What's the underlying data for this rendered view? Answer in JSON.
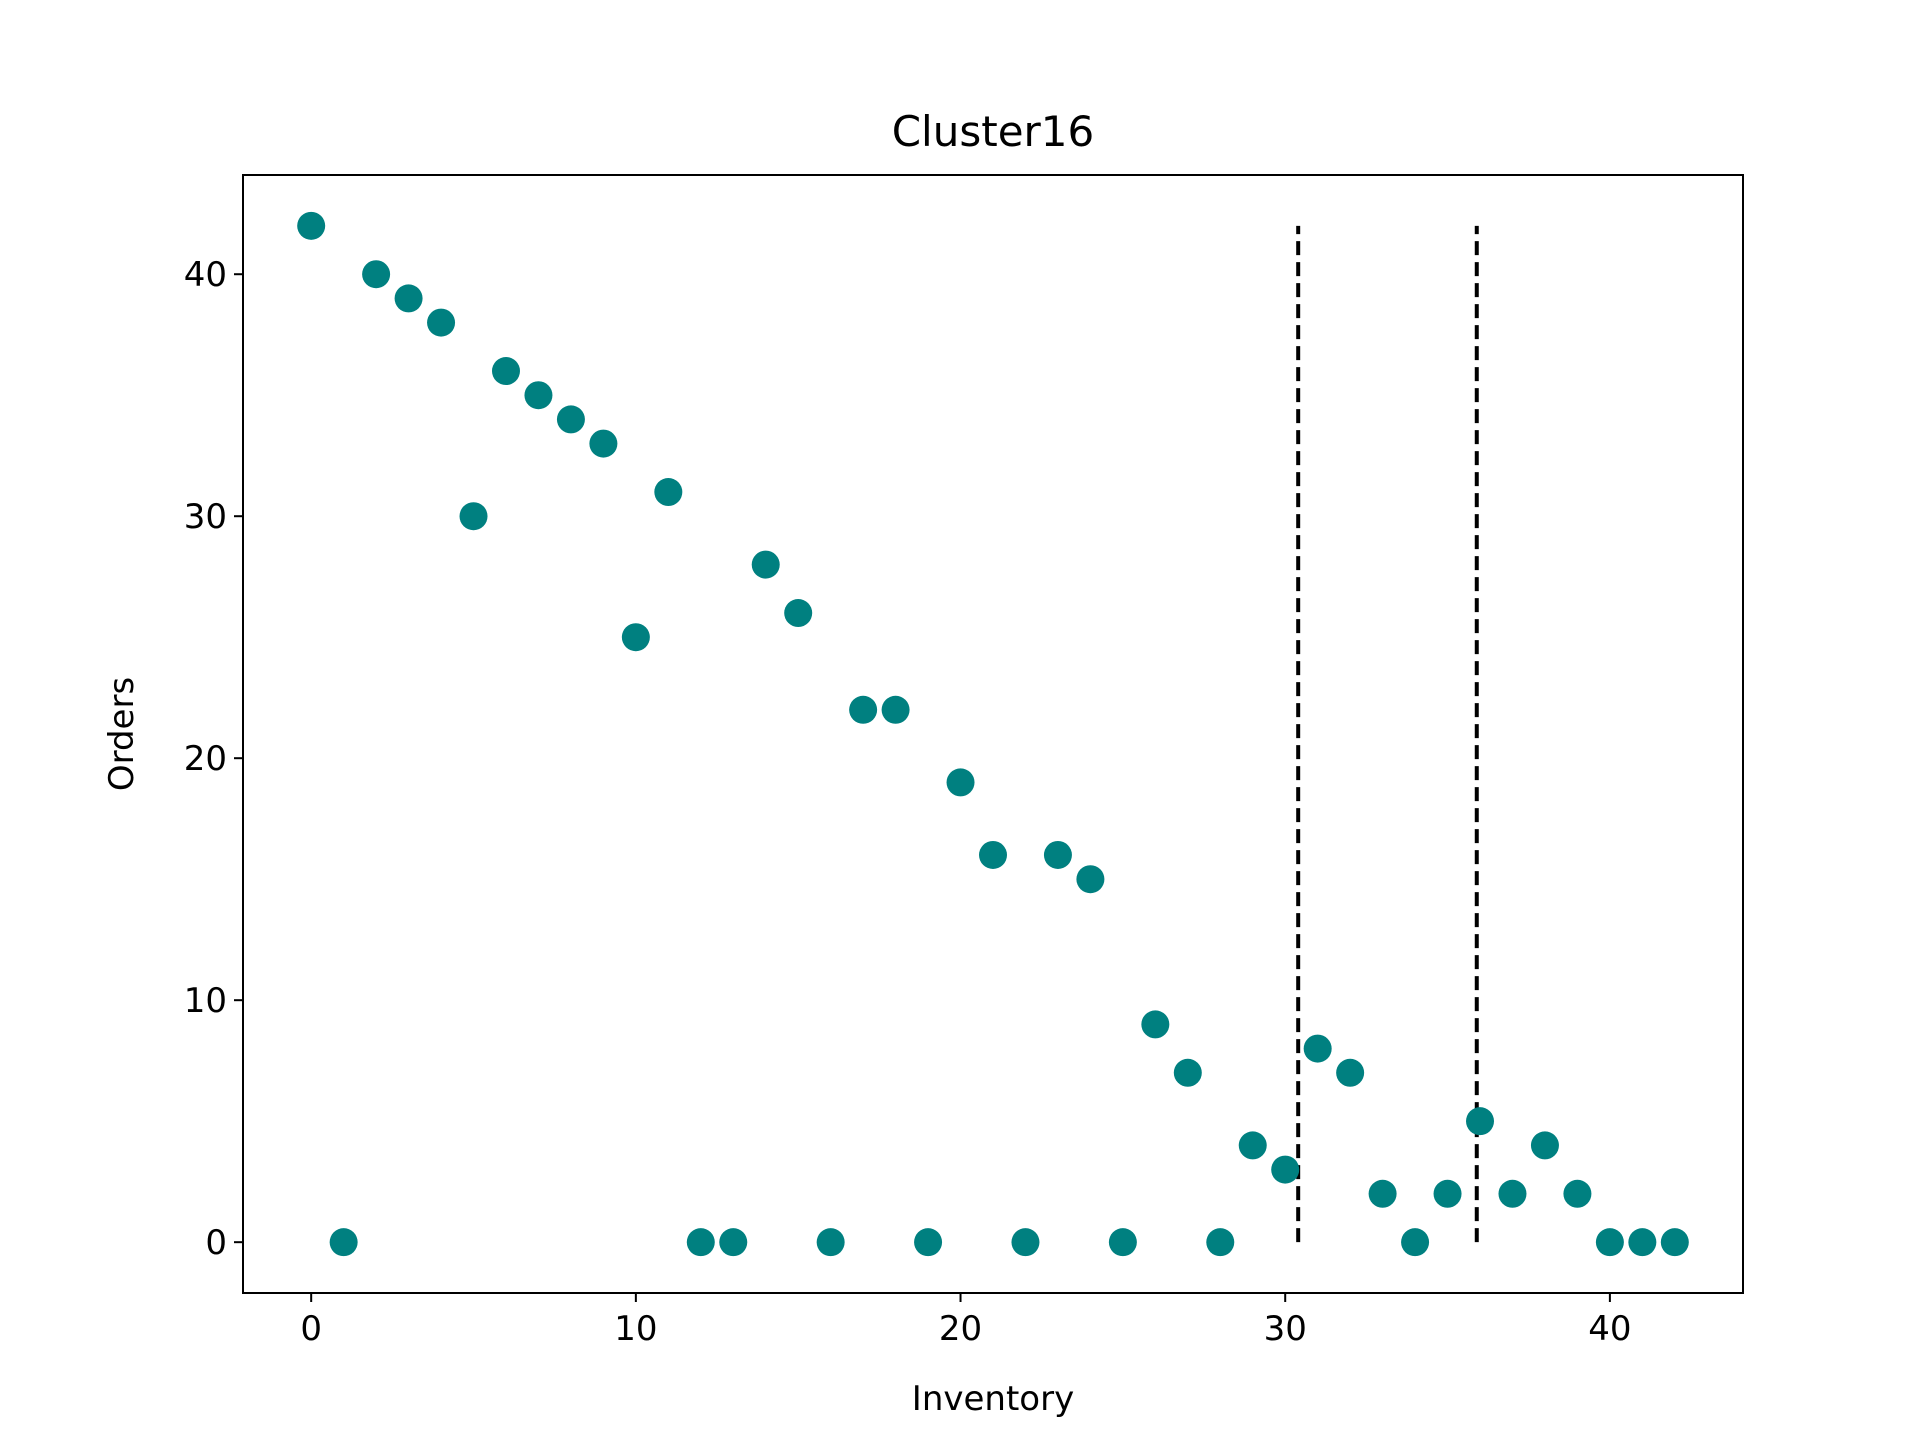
{
  "chart_data": {
    "type": "scatter",
    "title": "Cluster16",
    "xlabel": "Inventory",
    "ylabel": "Orders",
    "xlim": [
      -2.1,
      44.1
    ],
    "ylim": [
      -2.1,
      44.1
    ],
    "xticks": [
      0,
      10,
      20,
      30,
      40
    ],
    "yticks": [
      0,
      10,
      20,
      30,
      40
    ],
    "xtick_labels": [
      "0",
      "10",
      "20",
      "30",
      "40"
    ],
    "ytick_labels": [
      "0",
      "10",
      "20",
      "30",
      "40"
    ],
    "grid": false,
    "point_color": "#008080",
    "series": [
      {
        "x": [
          0,
          1,
          2,
          3,
          4,
          5,
          6,
          7,
          8,
          9,
          10,
          11,
          12,
          13,
          14,
          15,
          16,
          17,
          18,
          19,
          20,
          21,
          22,
          23,
          24,
          25,
          26,
          27,
          28,
          29,
          30,
          31,
          32,
          33,
          34,
          35,
          36,
          37,
          38,
          39,
          40,
          41,
          42
        ],
        "y": [
          42,
          0,
          40,
          39,
          38,
          30,
          36,
          35,
          34,
          33,
          25,
          31,
          0,
          0,
          28,
          26,
          0,
          22,
          22,
          0,
          19,
          16,
          0,
          16,
          15,
          0,
          9,
          7,
          0,
          4,
          3,
          8,
          7,
          2,
          0,
          2,
          5,
          2,
          4,
          2,
          0,
          0,
          0
        ]
      }
    ],
    "vlines": [
      {
        "x": 30.4,
        "ymin": 0,
        "ymax": 42,
        "style": "dashed",
        "color": "#000000"
      },
      {
        "x": 35.9,
        "ymin": 0,
        "ymax": 42,
        "style": "dashed",
        "color": "#000000"
      }
    ]
  }
}
